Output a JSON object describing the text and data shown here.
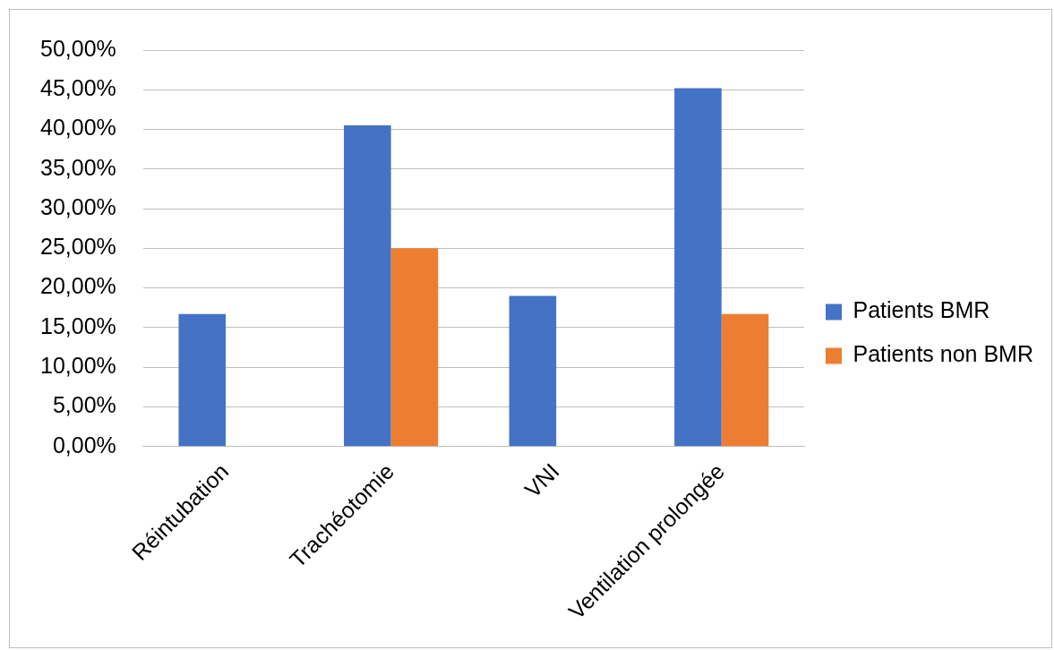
{
  "chart_data": {
    "type": "bar",
    "categories": [
      "Réintubation",
      "Trachéotomie",
      "VNI",
      "Ventilation prolongée"
    ],
    "series": [
      {
        "name": "Patients BMR",
        "color": "#4472c4",
        "values": [
          16.7,
          40.5,
          19.0,
          45.2
        ]
      },
      {
        "name": "Patients non BMR",
        "color": "#ed7d31",
        "values": [
          0,
          25.0,
          0,
          16.7
        ]
      }
    ],
    "ylim": [
      0,
      50
    ],
    "yticks": [
      {
        "value": 0,
        "label": "0,00%"
      },
      {
        "value": 5,
        "label": "5,00%"
      },
      {
        "value": 10,
        "label": "10,00%"
      },
      {
        "value": 15,
        "label": "15,00%"
      },
      {
        "value": 20,
        "label": "20,00%"
      },
      {
        "value": 25,
        "label": "25,00%"
      },
      {
        "value": 30,
        "label": "30,00%"
      },
      {
        "value": 35,
        "label": "35,00%"
      },
      {
        "value": 40,
        "label": "40,00%"
      },
      {
        "value": 45,
        "label": "45,00%"
      },
      {
        "value": 50,
        "label": "50,00%"
      }
    ],
    "grid": "y",
    "legend": "right"
  }
}
